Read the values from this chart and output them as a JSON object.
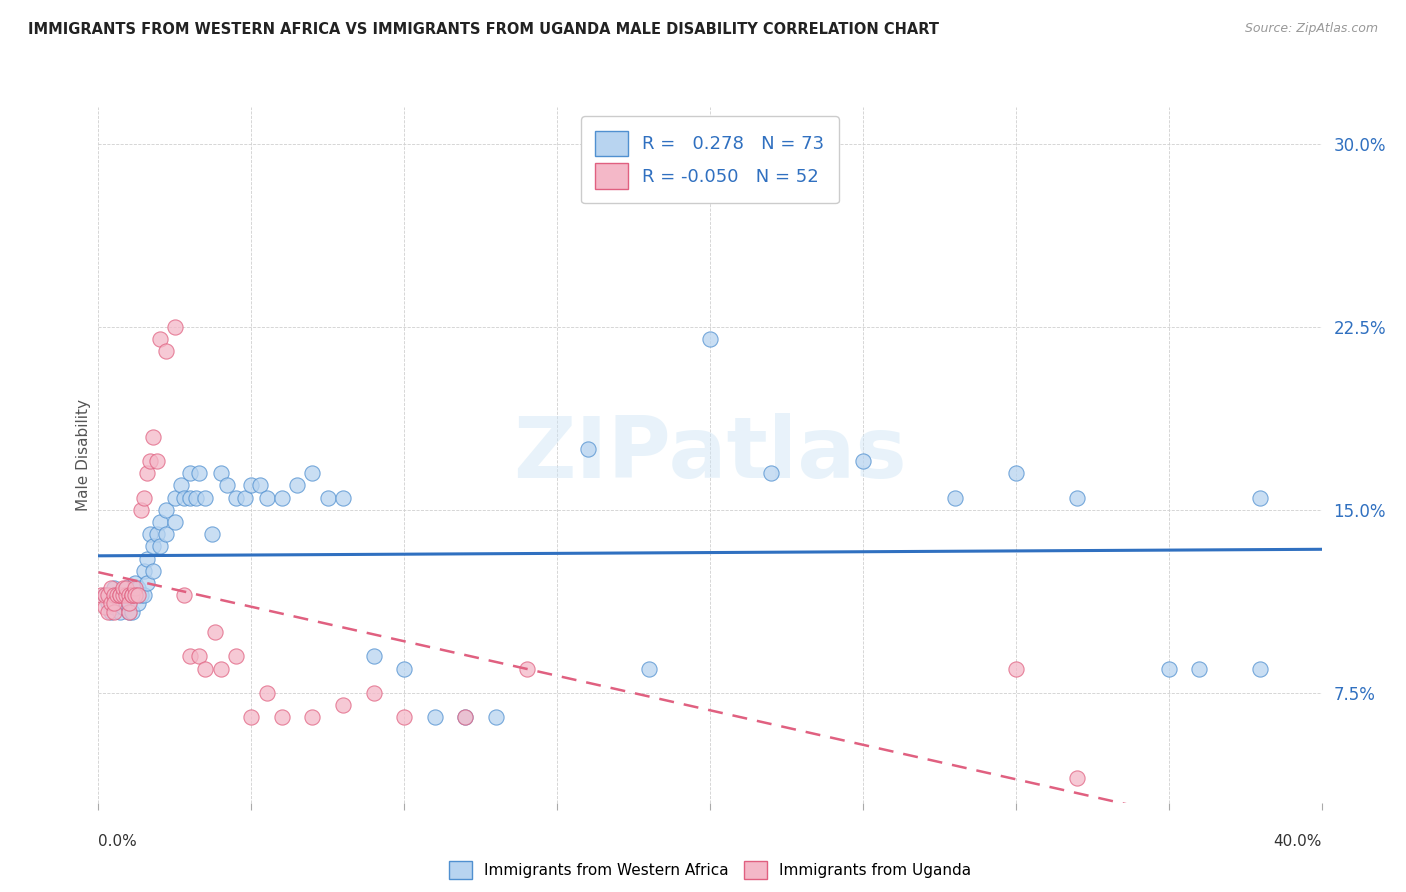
{
  "title": "IMMIGRANTS FROM WESTERN AFRICA VS IMMIGRANTS FROM UGANDA MALE DISABILITY CORRELATION CHART",
  "source": "Source: ZipAtlas.com",
  "ylabel": "Male Disability",
  "xlim": [
    0.0,
    0.4
  ],
  "ylim": [
    0.03,
    0.315
  ],
  "blue_R": 0.278,
  "blue_N": 73,
  "pink_R": -0.05,
  "pink_N": 52,
  "blue_color": "#b8d4f0",
  "pink_color": "#f4b8c8",
  "blue_edge_color": "#5090d0",
  "pink_edge_color": "#e06080",
  "blue_line_color": "#3070c0",
  "pink_line_color": "#e06080",
  "watermark": "ZIPatlas",
  "legend_label_blue": "Immigrants from Western Africa",
  "legend_label_pink": "Immigrants from Uganda",
  "blue_scatter_x": [
    0.002,
    0.003,
    0.004,
    0.005,
    0.005,
    0.006,
    0.007,
    0.007,
    0.008,
    0.008,
    0.009,
    0.009,
    0.01,
    0.01,
    0.01,
    0.011,
    0.011,
    0.012,
    0.012,
    0.013,
    0.013,
    0.014,
    0.015,
    0.015,
    0.016,
    0.016,
    0.017,
    0.018,
    0.018,
    0.019,
    0.02,
    0.02,
    0.022,
    0.022,
    0.025,
    0.025,
    0.027,
    0.028,
    0.03,
    0.03,
    0.032,
    0.033,
    0.035,
    0.037,
    0.04,
    0.042,
    0.045,
    0.048,
    0.05,
    0.053,
    0.055,
    0.06,
    0.065,
    0.07,
    0.075,
    0.08,
    0.09,
    0.1,
    0.11,
    0.12,
    0.13,
    0.16,
    0.18,
    0.2,
    0.22,
    0.25,
    0.28,
    0.3,
    0.32,
    0.35,
    0.36,
    0.38,
    0.38
  ],
  "blue_scatter_y": [
    0.115,
    0.112,
    0.108,
    0.118,
    0.11,
    0.115,
    0.112,
    0.108,
    0.115,
    0.11,
    0.118,
    0.112,
    0.115,
    0.108,
    0.112,
    0.115,
    0.108,
    0.12,
    0.115,
    0.118,
    0.112,
    0.115,
    0.125,
    0.115,
    0.13,
    0.12,
    0.14,
    0.135,
    0.125,
    0.14,
    0.145,
    0.135,
    0.15,
    0.14,
    0.155,
    0.145,
    0.16,
    0.155,
    0.165,
    0.155,
    0.155,
    0.165,
    0.155,
    0.14,
    0.165,
    0.16,
    0.155,
    0.155,
    0.16,
    0.16,
    0.155,
    0.155,
    0.16,
    0.165,
    0.155,
    0.155,
    0.09,
    0.085,
    0.065,
    0.065,
    0.065,
    0.175,
    0.085,
    0.22,
    0.165,
    0.17,
    0.155,
    0.165,
    0.155,
    0.085,
    0.085,
    0.155,
    0.085
  ],
  "pink_scatter_x": [
    0.001,
    0.002,
    0.002,
    0.003,
    0.003,
    0.004,
    0.004,
    0.005,
    0.005,
    0.005,
    0.006,
    0.007,
    0.007,
    0.008,
    0.008,
    0.009,
    0.009,
    0.01,
    0.01,
    0.01,
    0.011,
    0.011,
    0.012,
    0.012,
    0.013,
    0.014,
    0.015,
    0.016,
    0.017,
    0.018,
    0.019,
    0.02,
    0.022,
    0.025,
    0.028,
    0.03,
    0.033,
    0.035,
    0.038,
    0.04,
    0.045,
    0.05,
    0.055,
    0.06,
    0.07,
    0.08,
    0.09,
    0.1,
    0.12,
    0.14,
    0.3,
    0.32
  ],
  "pink_scatter_y": [
    0.115,
    0.11,
    0.115,
    0.108,
    0.115,
    0.112,
    0.118,
    0.115,
    0.108,
    0.112,
    0.115,
    0.115,
    0.115,
    0.115,
    0.118,
    0.115,
    0.118,
    0.115,
    0.108,
    0.112,
    0.115,
    0.115,
    0.118,
    0.115,
    0.115,
    0.15,
    0.155,
    0.165,
    0.17,
    0.18,
    0.17,
    0.22,
    0.215,
    0.225,
    0.115,
    0.09,
    0.09,
    0.085,
    0.1,
    0.085,
    0.09,
    0.065,
    0.075,
    0.065,
    0.065,
    0.07,
    0.075,
    0.065,
    0.065,
    0.085,
    0.085,
    0.04
  ]
}
